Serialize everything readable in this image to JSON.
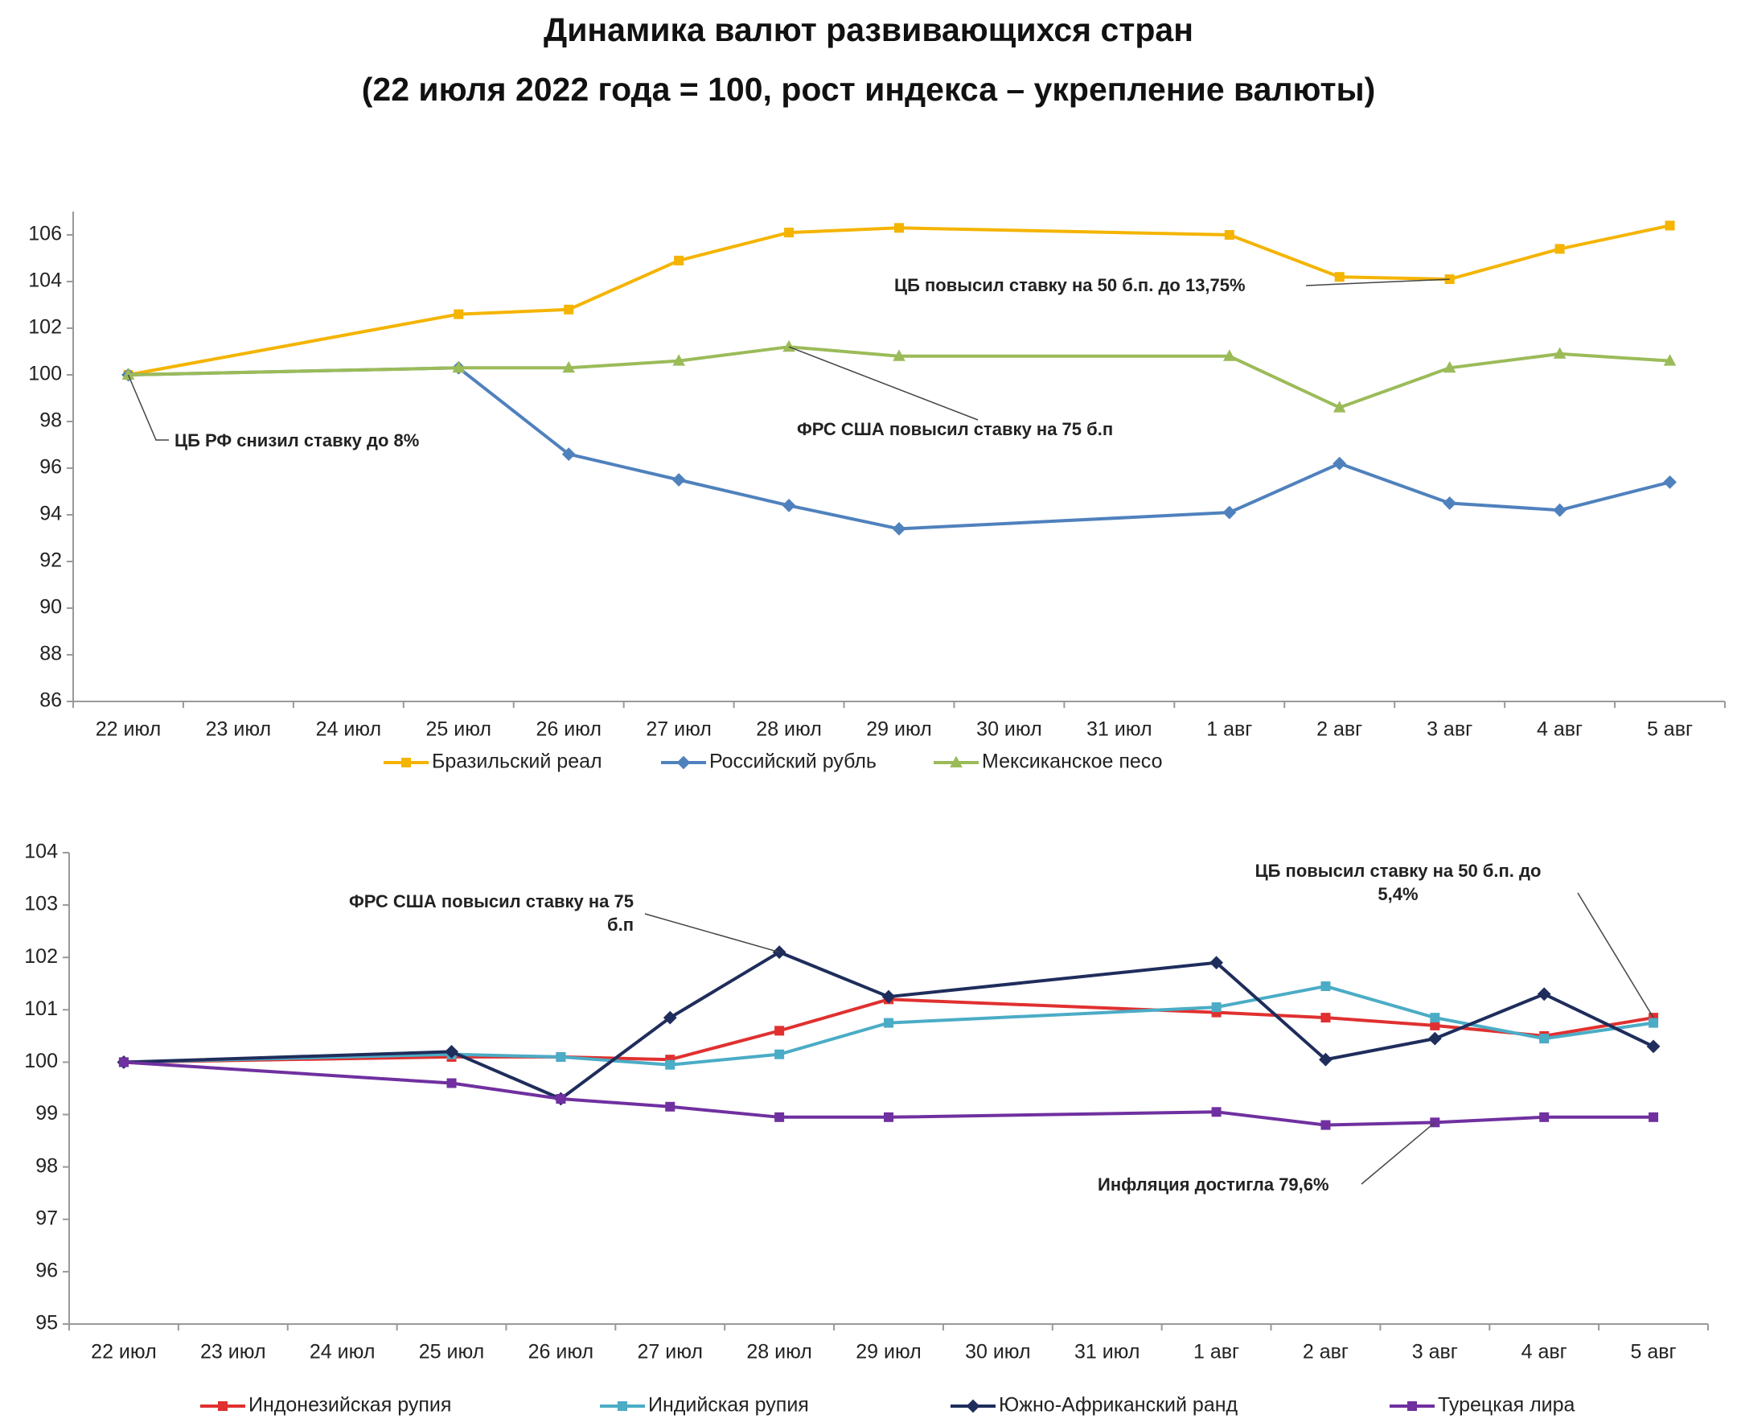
{
  "title": "Динамика валют развивающихся стран",
  "subtitle": "(22 июля 2022 года = 100, рост индекса – укрепление валюты)",
  "chart_data": [
    {
      "type": "line",
      "categories": [
        "22 июл",
        "23 июл",
        "24 июл",
        "25 июл",
        "26 июл",
        "27 июл",
        "28 июл",
        "29 июл",
        "30 июл",
        "31 июл",
        "1 авг",
        "2 авг",
        "3 авг",
        "4 авг",
        "5 авг"
      ],
      "ylim": [
        86,
        107
      ],
      "yticks": [
        86,
        88,
        90,
        92,
        94,
        96,
        98,
        100,
        102,
        104,
        106
      ],
      "grid": false,
      "series": [
        {
          "name": "Бразильский реал",
          "color": "#f4b400",
          "marker": "square",
          "values": [
            100,
            null,
            null,
            102.6,
            102.8,
            104.9,
            106.1,
            106.3,
            null,
            null,
            106.0,
            104.2,
            104.1,
            105.4,
            106.4
          ]
        },
        {
          "name": "Российский рубль",
          "color": "#4f81bd",
          "marker": "diamond",
          "values": [
            100,
            null,
            null,
            100.3,
            96.6,
            95.5,
            94.4,
            93.4,
            null,
            null,
            94.1,
            96.2,
            94.5,
            94.2,
            95.4
          ]
        },
        {
          "name": "Мексиканское песо",
          "color": "#9bbb59",
          "marker": "triangle",
          "values": [
            100,
            null,
            null,
            100.3,
            100.3,
            100.6,
            101.2,
            100.8,
            null,
            null,
            100.8,
            98.6,
            100.3,
            100.9,
            100.6
          ]
        }
      ],
      "annotations": [
        "ЦБ РФ снизил ставку до 8%",
        "ФРС США повысил ставку на 75 б.п",
        "ЦБ повысил ставку на 50 б.п. до 13,75%"
      ]
    },
    {
      "type": "line",
      "categories": [
        "22 июл",
        "23 июл",
        "24 июл",
        "25 июл",
        "26 июл",
        "27 июл",
        "28 июл",
        "29 июл",
        "30 июл",
        "31 июл",
        "1 авг",
        "2 авг",
        "3 авг",
        "4 авг",
        "5 авг"
      ],
      "ylim": [
        95,
        104
      ],
      "yticks": [
        95,
        96,
        97,
        98,
        99,
        100,
        101,
        102,
        103,
        104
      ],
      "grid": false,
      "series": [
        {
          "name": "Индонезийская рупия",
          "color": "#e03030",
          "marker": "square",
          "values": [
            100,
            null,
            null,
            100.1,
            100.1,
            100.05,
            100.6,
            101.2,
            null,
            null,
            100.95,
            100.85,
            100.7,
            100.5,
            100.85
          ]
        },
        {
          "name": "Индийская рупия",
          "color": "#4bacc6",
          "marker": "square",
          "values": [
            100,
            null,
            null,
            100.15,
            100.1,
            99.95,
            100.15,
            100.75,
            null,
            null,
            101.05,
            101.45,
            100.85,
            100.45,
            100.75
          ]
        },
        {
          "name": "Южно-Африканский ранд",
          "color": "#1f2d5c",
          "marker": "diamond",
          "values": [
            100,
            null,
            null,
            100.2,
            99.3,
            100.85,
            102.1,
            101.25,
            null,
            null,
            101.9,
            100.05,
            100.45,
            101.3,
            100.3
          ]
        },
        {
          "name": "Турецкая лира",
          "color": "#7030a0",
          "marker": "square",
          "values": [
            100,
            null,
            null,
            99.6,
            99.3,
            99.15,
            98.95,
            98.95,
            null,
            null,
            99.05,
            98.8,
            98.85,
            98.95,
            98.95
          ]
        }
      ],
      "annotations": [
        "ФРС США повысил ставку на 75 б.п",
        "ЦБ повысил ставку на 50 б.п. до 5,4%",
        "Инфляция достигла 79,6%"
      ]
    }
  ]
}
